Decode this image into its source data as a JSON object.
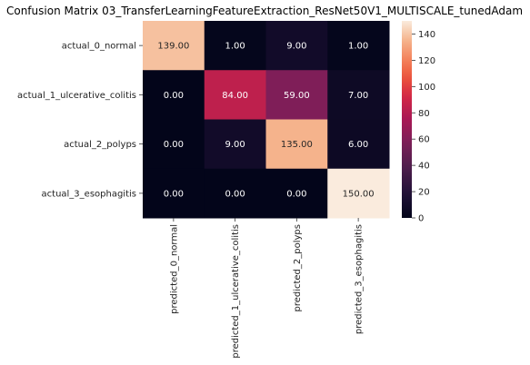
{
  "chart_data": {
    "type": "heatmap",
    "title": "Confusion Matrix 03_TransferLearningFeatureExtraction_ResNet50V1_MULTISCALE_tunedAdam",
    "rows": [
      "actual_0_normal",
      "actual_1_ulcerative_colitis",
      "actual_2_polyps",
      "actual_3_esophagitis"
    ],
    "columns": [
      "predicted_0_normal",
      "predicted_1_ulcerative_colitis",
      "predicted_2_polyps",
      "predicted_3_esophagitis"
    ],
    "values": [
      [
        139,
        1,
        9,
        1
      ],
      [
        0,
        84,
        59,
        7
      ],
      [
        0,
        9,
        135,
        6
      ],
      [
        0,
        0,
        0,
        150
      ]
    ],
    "cell_labels": [
      [
        "139.00",
        "1.00",
        "9.00",
        "1.00"
      ],
      [
        "0.00",
        "84.00",
        "59.00",
        "7.00"
      ],
      [
        "0.00",
        "9.00",
        "135.00",
        "6.00"
      ],
      [
        "0.00",
        "0.00",
        "0.00",
        "150.00"
      ]
    ],
    "colormap": "rocket",
    "colorbar": {
      "range": [
        0,
        150
      ],
      "ticks": [
        0,
        20,
        40,
        60,
        80,
        100,
        120,
        140
      ],
      "tick_labels": [
        "0",
        "20",
        "40",
        "60",
        "80",
        "100",
        "120",
        "140"
      ]
    }
  }
}
